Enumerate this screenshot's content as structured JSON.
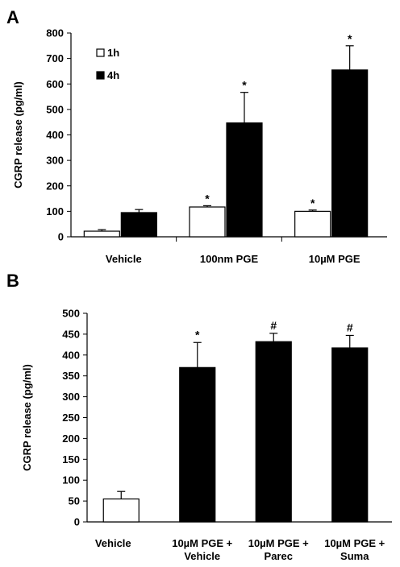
{
  "chart_data": [
    {
      "panel": "A",
      "type": "bar",
      "ylabel": "CGRP release (pg/ml)",
      "ylim": [
        0,
        800
      ],
      "yticks": [
        0,
        100,
        200,
        300,
        400,
        500,
        600,
        700,
        800
      ],
      "categories": [
        "Vehicle",
        "100nm PGE",
        "10µM PGE"
      ],
      "legend": "top-left",
      "series": [
        {
          "name": "1h",
          "fill": "#ffffff",
          "values": [
            22,
            117,
            100
          ],
          "errors": [
            6,
            5,
            5
          ],
          "annotations": [
            "",
            "*",
            "*"
          ]
        },
        {
          "name": "4h",
          "fill": "#000000",
          "values": [
            95,
            447,
            655
          ],
          "errors": [
            12,
            120,
            95
          ],
          "annotations": [
            "",
            "*",
            "*"
          ]
        }
      ]
    },
    {
      "panel": "B",
      "type": "bar",
      "ylabel": "CGRP release (pg/ml)",
      "ylim": [
        0,
        500
      ],
      "yticks": [
        0,
        50,
        100,
        150,
        200,
        250,
        300,
        350,
        400,
        450,
        500
      ],
      "categories": [
        [
          "Vehicle"
        ],
        [
          "10µM PGE +",
          "Vehicle"
        ],
        [
          "10µM PGE +",
          "Parec"
        ],
        [
          "10µM PGE +",
          "Suma"
        ]
      ],
      "values": [
        55,
        370,
        432,
        417
      ],
      "errors": [
        18,
        60,
        20,
        30
      ],
      "fills": [
        "#ffffff",
        "#000000",
        "#000000",
        "#000000"
      ],
      "annotations": [
        "",
        "*",
        "#",
        "#"
      ]
    }
  ]
}
